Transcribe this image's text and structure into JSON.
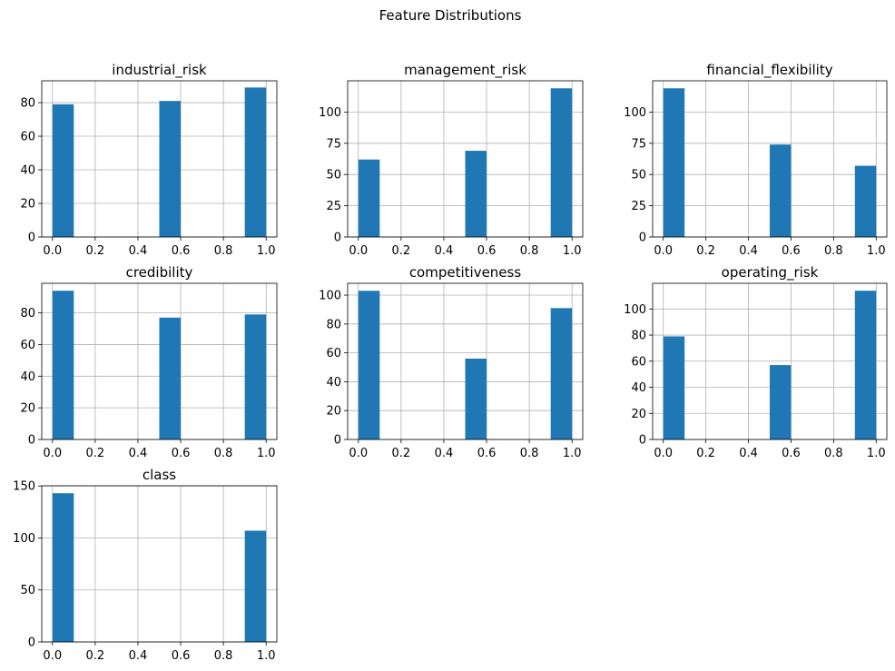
{
  "title": "Feature Distributions",
  "chart_data": [
    {
      "type": "bar",
      "title": "industrial_risk",
      "x": [
        0.0,
        0.5,
        1.0
      ],
      "values": [
        79,
        81,
        89
      ],
      "xlim": [
        -0.05,
        1.05
      ],
      "ylim": [
        0,
        93
      ],
      "xticks": [
        "0.0",
        "0.2",
        "0.4",
        "0.6",
        "0.8",
        "1.0"
      ],
      "yticks": [
        0,
        20,
        40,
        60,
        80
      ],
      "grid": true,
      "color": "#1f77b4"
    },
    {
      "type": "bar",
      "title": "management_risk",
      "x": [
        0.0,
        0.5,
        1.0
      ],
      "values": [
        62,
        69,
        119
      ],
      "xlim": [
        -0.05,
        1.05
      ],
      "ylim": [
        0,
        125
      ],
      "xticks": [
        "0.0",
        "0.2",
        "0.4",
        "0.6",
        "0.8",
        "1.0"
      ],
      "yticks": [
        0,
        25,
        50,
        75,
        100
      ],
      "grid": true,
      "color": "#1f77b4"
    },
    {
      "type": "bar",
      "title": "financial_flexibility",
      "x": [
        0.0,
        0.5,
        1.0
      ],
      "values": [
        119,
        74,
        57
      ],
      "xlim": [
        -0.05,
        1.05
      ],
      "ylim": [
        0,
        125
      ],
      "xticks": [
        "0.0",
        "0.2",
        "0.4",
        "0.6",
        "0.8",
        "1.0"
      ],
      "yticks": [
        0,
        25,
        50,
        75,
        100
      ],
      "grid": true,
      "color": "#1f77b4"
    },
    {
      "type": "bar",
      "title": "credibility",
      "x": [
        0.0,
        0.5,
        1.0
      ],
      "values": [
        94,
        77,
        79
      ],
      "xlim": [
        -0.05,
        1.05
      ],
      "ylim": [
        0,
        98.7
      ],
      "xticks": [
        "0.0",
        "0.2",
        "0.4",
        "0.6",
        "0.8",
        "1.0"
      ],
      "yticks": [
        0,
        20,
        40,
        60,
        80
      ],
      "grid": true,
      "color": "#1f77b4"
    },
    {
      "type": "bar",
      "title": "competitiveness",
      "x": [
        0.0,
        0.5,
        1.0
      ],
      "values": [
        103,
        56,
        91
      ],
      "xlim": [
        -0.05,
        1.05
      ],
      "ylim": [
        0,
        108.2
      ],
      "xticks": [
        "0.0",
        "0.2",
        "0.4",
        "0.6",
        "0.8",
        "1.0"
      ],
      "yticks": [
        0,
        20,
        40,
        60,
        80,
        100
      ],
      "grid": true,
      "color": "#1f77b4"
    },
    {
      "type": "bar",
      "title": "operating_risk",
      "x": [
        0.0,
        0.5,
        1.0
      ],
      "values": [
        79,
        57,
        114
      ],
      "xlim": [
        -0.05,
        1.05
      ],
      "ylim": [
        0,
        119.7
      ],
      "xticks": [
        "0.0",
        "0.2",
        "0.4",
        "0.6",
        "0.8",
        "1.0"
      ],
      "yticks": [
        0,
        20,
        40,
        60,
        80,
        100
      ],
      "grid": true,
      "color": "#1f77b4"
    },
    {
      "type": "bar",
      "title": "class",
      "x": [
        0.0,
        1.0
      ],
      "values": [
        143,
        107
      ],
      "xlim": [
        -0.05,
        1.05
      ],
      "ylim": [
        0,
        150.2
      ],
      "xticks": [
        "0.0",
        "0.2",
        "0.4",
        "0.6",
        "0.8",
        "1.0"
      ],
      "yticks": [
        0,
        50,
        100,
        150
      ],
      "grid": true,
      "color": "#1f77b4"
    }
  ]
}
